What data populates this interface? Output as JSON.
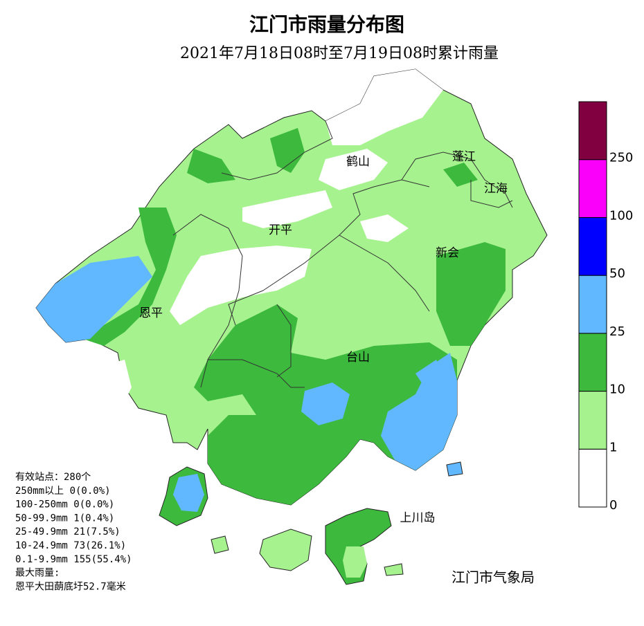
{
  "header": {
    "title": "江门市雨量分布图",
    "subtitle": "2021年7月18日08时至7月19日08时累计雨量"
  },
  "places": [
    "鹤山",
    "蓬江",
    "江海",
    "开平",
    "新会",
    "恩平",
    "台山",
    "上川岛"
  ],
  "stats": [
    "有效站点：280个",
    "250mm以上 0(0.0%)",
    "100-250mm 0(0.0%)",
    "50-99.9mm 1(0.4%)",
    "25-49.9mm 21(7.5%)",
    "10-24.9mm 73(26.1%)",
    "0.1-9.9mm 155(55.4%)",
    "最大雨量:",
    "恩平大田蓢底圩52.7毫米"
  ],
  "credit": "江门市气象局",
  "legend": {
    "labels": [
      "0",
      "1",
      "10",
      "25",
      "50",
      "100",
      "250"
    ],
    "colors": [
      "#ffffff",
      "#a6f28f",
      "#3dba3d",
      "#61b8ff",
      "#0000ff",
      "#fa00fa",
      "#800040"
    ]
  }
}
